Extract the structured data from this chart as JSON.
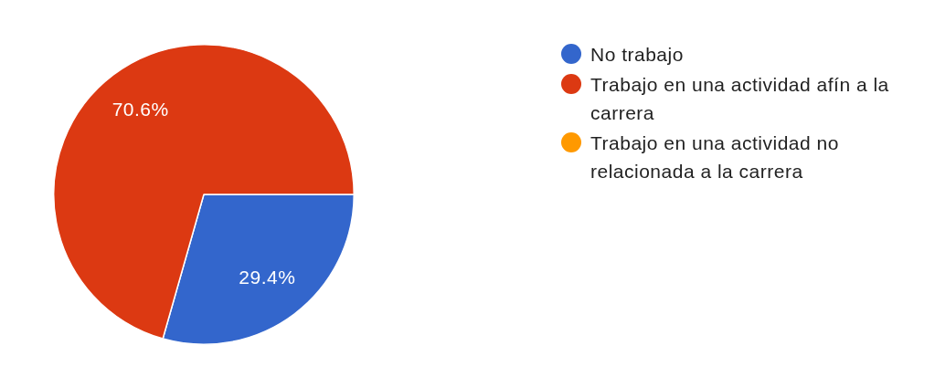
{
  "chart_data": {
    "type": "pie",
    "categories": [
      "No trabajo",
      "Trabajo en una actividad afín a la carrera",
      "Trabajo en una actividad no relacionada a la carrera"
    ],
    "values": [
      29.4,
      70.6,
      0
    ],
    "colors": [
      "#3366cc",
      "#dc3912",
      "#ff9900"
    ],
    "value_labels": [
      "29.4%",
      "70.6%",
      null
    ],
    "legend": "right"
  }
}
